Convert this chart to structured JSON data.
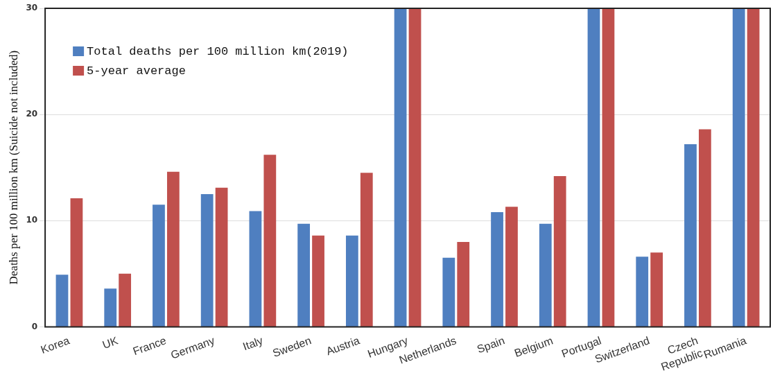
{
  "chart_data": {
    "type": "bar",
    "ylabel": "Deaths per 100 million km (Suicide not included)",
    "categories": [
      "Korea",
      "UK",
      "France",
      "Germany",
      "Italy",
      "Sweden",
      "Austria",
      "Hungary",
      "Netherlands",
      "Spain",
      "Belgium",
      "Portugal",
      "Switzerland",
      "Czech Republic",
      "Rumania"
    ],
    "series": [
      {
        "name": "Total deaths per 100 million km(2019)",
        "color": "#4f7fc0",
        "values": [
          4.9,
          3.6,
          11.5,
          12.5,
          10.9,
          9.7,
          8.6,
          30,
          6.5,
          10.8,
          9.7,
          30,
          6.6,
          17.2,
          30
        ]
      },
      {
        "name": "5-year average",
        "color": "#c0504d",
        "values": [
          12.1,
          5.0,
          14.6,
          13.1,
          16.2,
          8.6,
          14.5,
          30,
          8.0,
          11.3,
          14.2,
          30,
          7.0,
          18.6,
          30
        ]
      }
    ],
    "ylim": [
      0,
      30
    ],
    "yticks": [
      0,
      10,
      20,
      30
    ],
    "grid": "y",
    "legend": "top left"
  }
}
